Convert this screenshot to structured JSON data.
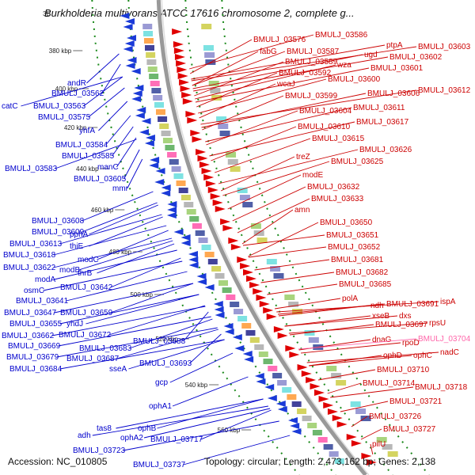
{
  "header": {
    "title": "Burkholderia multivorans ATCC 17616 chromosome 2, complete g...",
    "icon": "map-icon"
  },
  "footer": {
    "accession": "Accession: NC_010805",
    "info": "Topology: circular; Length: 2,473,162 bp; Genes: 2,138"
  },
  "colors": {
    "reverse_label": "#0000cc",
    "forward_label": "#cc0000",
    "highlight_label": "#ff66aa",
    "backbone": "#999999",
    "ring_dots": "#1c8a1c"
  },
  "kbp_marks": [
    "380 kbp",
    "400 kbp",
    "420 kbp",
    "440 kbp",
    "460 kbp",
    "480 kbp",
    "500 kbp",
    "520 kbp",
    "540 kbp",
    "560 kbp"
  ],
  "reverse_labels": [
    "andR",
    "BMULJ_03562",
    "catC",
    "BMULJ_03563",
    "BMULJ_03575",
    "yhfA",
    "BMULJ_03584",
    "BMULJ_03585",
    "BMULJ_03583",
    "manC",
    "BMULJ_03605",
    "mmr",
    "BMULJ_03608",
    "BMULJ_03609",
    "pphA",
    "BMULJ_03613",
    "thiE",
    "BMULJ_03618",
    "modC",
    "BMULJ_03622",
    "modB",
    "thrB",
    "modA",
    "osmC",
    "BMULJ_03642",
    "BMULJ_03641",
    "BMULJ_03647",
    "BMULJ_03659",
    "BMULJ_03655",
    "yhdJ",
    "BMULJ_03662",
    "BMULJ_03672",
    "BMULJ_03669",
    "BMULJ_03683",
    "BMULJ_03688",
    "BMULJ_03679",
    "BMULJ_03687",
    "BMULJ_03684",
    "BMULJ_03693",
    "sseA",
    "gcp",
    "ophA1",
    "ophB",
    "ophA2",
    "BMULJ_03717",
    "tas8",
    "adh",
    "BMULJ_03723",
    "BMULJ_03737"
  ],
  "forward_labels": [
    "BMULJ_03576",
    "BMULJ_03586",
    "fabG",
    "BMULJ_03587",
    "ptpA",
    "BMULJ_03603",
    "ugd",
    "BMULJ_03589",
    "BMULJ_03602",
    "wza",
    "BMULJ_03592",
    "BMULJ_03601",
    "wcaJ",
    "BMULJ_03600",
    "BMULJ_03599",
    "BMULJ_03606",
    "BMULJ_03612",
    "BMULJ_03611",
    "BMULJ_03604",
    "BMULJ_03617",
    "BMULJ_03610",
    "BMULJ_03615",
    "BMULJ_03626",
    "treZ",
    "BMULJ_03625",
    "modE",
    "BMULJ_03632",
    "BMULJ_03633",
    "amn",
    "BMULJ_03650",
    "BMULJ_03651",
    "BMULJ_03652",
    "BMULJ_03681",
    "BMULJ_03682",
    "BMULJ_03685",
    "polA",
    "ndh",
    "BMULJ_03691",
    "ispA",
    "xseB",
    "dxs",
    "BMULJ_03697",
    "rpsU",
    "dnaG",
    "BMULJ_03704",
    "rpoD",
    "ophD",
    "ophC",
    "nadC",
    "BMULJ_03710",
    "BMULJ_03714",
    "BMULJ_03718",
    "BMULJ_03721",
    "BMULJ_03726",
    "BMULJ_03727",
    "pilU"
  ],
  "highlight_label": "BMULJ_03704"
}
